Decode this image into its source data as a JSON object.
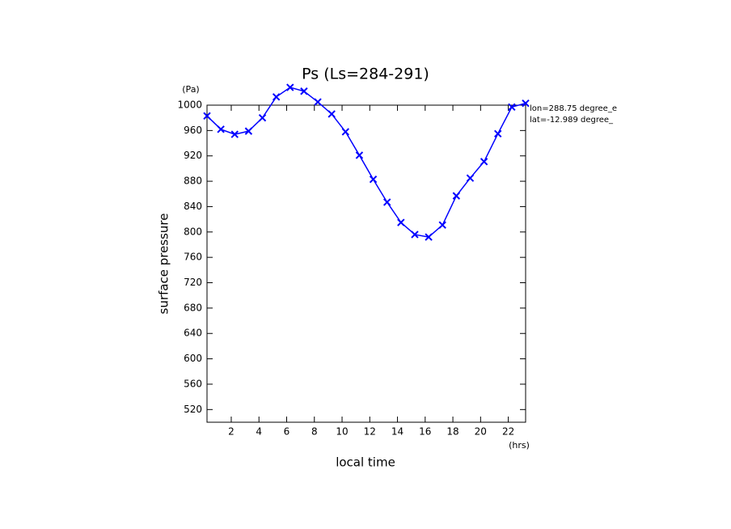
{
  "chart_data": {
    "type": "line",
    "title": "Ps (Ls=284-291)",
    "y_unit": "(Pa)",
    "x_unit": "(hrs)",
    "y_label": "surface pressure",
    "x_label": "local time",
    "annotations": [
      "lon=288.75 degree_e",
      "lat=-12.989 degree_"
    ],
    "x": [
      0.25,
      1.25,
      2.25,
      3.25,
      4.25,
      5.25,
      6.25,
      7.25,
      8.25,
      9.25,
      10.25,
      11.25,
      12.25,
      13.25,
      14.25,
      15.25,
      16.25,
      17.25,
      18.25,
      19.25,
      20.25,
      21.25,
      22.25,
      23.25
    ],
    "series": [
      {
        "name": "Ps",
        "color": "#0000ff",
        "values": [
          983,
          962,
          954,
          959,
          980,
          1013,
          1028,
          1022,
          1005,
          986,
          958,
          921,
          883,
          847,
          815,
          796,
          792,
          811,
          857,
          885,
          911,
          955,
          997,
          1003
        ]
      }
    ],
    "xlim": [
      0.25,
      23.25
    ],
    "xticks": [
      2,
      4,
      6,
      8,
      10,
      12,
      14,
      16,
      18,
      20,
      22
    ],
    "ylim": [
      500,
      1000
    ],
    "yticks": [
      520,
      560,
      600,
      640,
      680,
      720,
      760,
      800,
      840,
      880,
      920,
      960,
      1000
    ]
  }
}
